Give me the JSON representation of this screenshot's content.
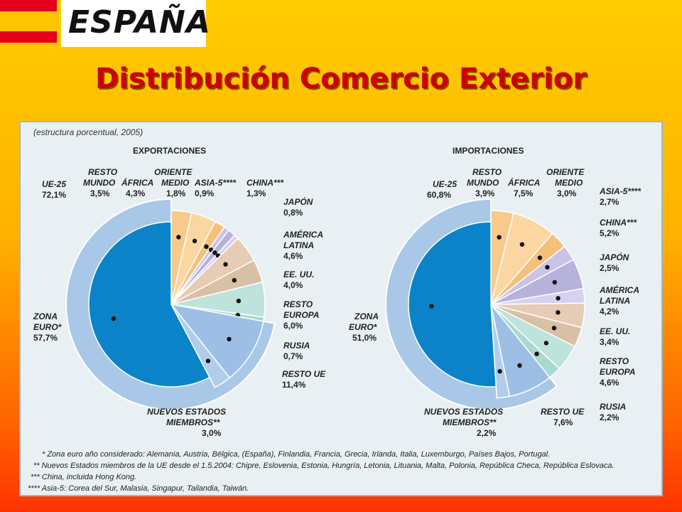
{
  "brand": {
    "logo_text": "ESPAÑA"
  },
  "title": "Distribución Comercio Exterior",
  "subtitle": "(estructura porcentual, 2005)",
  "chart_data": [
    {
      "type": "pie",
      "title": "EXPORTACIONES",
      "slices": [
        {
          "name": "RESTO MUNDO",
          "value": 3.5,
          "color": "#f7c98b"
        },
        {
          "name": "ÁFRICA",
          "value": 4.3,
          "color": "#fbd6a0"
        },
        {
          "name": "ORIENTE MEDIO",
          "value": 1.8,
          "color": "#f4c07a"
        },
        {
          "name": "ASIA-5****",
          "value": 0.9,
          "color": "#c9c3e6"
        },
        {
          "name": "CHINA***",
          "value": 1.3,
          "color": "#b7b2dc"
        },
        {
          "name": "JAPÓN",
          "value": 0.8,
          "color": "#d6d1ee"
        },
        {
          "name": "AMÉRICA LATINA",
          "value": 4.6,
          "color": "#e6ccb4"
        },
        {
          "name": "EE. UU.",
          "value": 4.0,
          "color": "#d8c0a6"
        },
        {
          "name": "RESTO EUROPA",
          "value": 6.0,
          "color": "#bde3dc"
        },
        {
          "name": "RUSIA",
          "value": 0.7,
          "color": "#a9d8cf"
        },
        {
          "name": "RESTO UE",
          "value": 11.4,
          "color": "#9dbfe6"
        },
        {
          "name": "NUEVOS ESTADOS MIEMBROS**",
          "value": 3.0,
          "color": "#b1cdeb"
        },
        {
          "name": "ZONA EURO*",
          "value": 57.7,
          "color": "#0b83c9"
        }
      ],
      "labels": {
        "ue25": {
          "name": "UE-25",
          "value": "72,1%"
        },
        "resto_mundo": {
          "name1": "RESTO",
          "name2": "MUNDO",
          "value": "3,5%"
        },
        "africa": {
          "name": "ÁFRICA",
          "value": "4,3%"
        },
        "oriente": {
          "name1": "ORIENTE",
          "name2": "MEDIO",
          "value": "1,8%"
        },
        "asia5": {
          "name": "ASIA-5****",
          "value": "0,9%"
        },
        "china": {
          "name": "CHINA***",
          "value": "1,3%"
        },
        "japon": {
          "name": "JAPÓN",
          "value": "0,8%"
        },
        "america": {
          "name1": "AMÉRICA",
          "name2": "LATINA",
          "value": "4,6%"
        },
        "eeuu": {
          "name": "EE. UU.",
          "value": "4,0%"
        },
        "resto_europa": {
          "name1": "RESTO",
          "name2": "EUROPA",
          "value": "6,0%"
        },
        "rusia": {
          "name": "RUSIA",
          "value": "0,7%"
        },
        "resto_ue": {
          "name": "RESTO UE",
          "value": "11,4%"
        },
        "nuevos": {
          "name1": "NUEVOS ESTADOS",
          "name2": "MIEMBROS**",
          "value": "3,0%"
        },
        "zona_euro": {
          "name1": "ZONA",
          "name2": "EURO*",
          "value": "57,7%"
        }
      }
    },
    {
      "type": "pie",
      "title": "IMPORTACIONES",
      "slices": [
        {
          "name": "RESTO MUNDO",
          "value": 3.9,
          "color": "#f7c98b"
        },
        {
          "name": "ÁFRICA",
          "value": 7.5,
          "color": "#fbd6a0"
        },
        {
          "name": "ORIENTE MEDIO",
          "value": 3.0,
          "color": "#f4c07a"
        },
        {
          "name": "ASIA-5****",
          "value": 2.7,
          "color": "#c9c3e6"
        },
        {
          "name": "CHINA***",
          "value": 5.2,
          "color": "#b7b2dc"
        },
        {
          "name": "JAPÓN",
          "value": 2.5,
          "color": "#d6d1ee"
        },
        {
          "name": "AMÉRICA LATINA",
          "value": 4.2,
          "color": "#e6ccb4"
        },
        {
          "name": "EE. UU.",
          "value": 3.4,
          "color": "#d8c0a6"
        },
        {
          "name": "RESTO EUROPA",
          "value": 4.6,
          "color": "#bde3dc"
        },
        {
          "name": "RUSIA",
          "value": 2.2,
          "color": "#a9d8cf"
        },
        {
          "name": "RESTO UE",
          "value": 7.6,
          "color": "#9dbfe6"
        },
        {
          "name": "NUEVOS ESTADOS MIEMBROS**",
          "value": 2.2,
          "color": "#b1cdeb"
        },
        {
          "name": "ZONA EURO*",
          "value": 51.0,
          "color": "#0b83c9"
        }
      ],
      "labels": {
        "ue25": {
          "name": "UE-25",
          "value": "60,8%"
        },
        "resto_mundo": {
          "name1": "RESTO",
          "name2": "MUNDO",
          "value": "3,9%"
        },
        "africa": {
          "name": "ÁFRICA",
          "value": "7,5%"
        },
        "oriente": {
          "name1": "ORIENTE",
          "name2": "MEDIO",
          "value": "3,0%"
        },
        "asia5": {
          "name": "ASIA-5****",
          "value": "2,7%"
        },
        "china": {
          "name": "CHINA***",
          "value": "5,2%"
        },
        "japon": {
          "name": "JAPÓN",
          "value": "2,5%"
        },
        "america": {
          "name1": "AMÉRICA",
          "name2": "LATINA",
          "value": "4,2%"
        },
        "eeuu": {
          "name": "EE. UU.",
          "value": "3,4%"
        },
        "resto_europa": {
          "name1": "RESTO",
          "name2": "EUROPA",
          "value": "4,6%"
        },
        "rusia": {
          "name": "RUSIA",
          "value": "2,2%"
        },
        "resto_ue": {
          "name": "RESTO UE",
          "value": "7,6%"
        },
        "nuevos": {
          "name1": "NUEVOS ESTADOS",
          "name2": "MIEMBROS**",
          "value": "2,2%"
        },
        "zona_euro": {
          "name1": "ZONA",
          "name2": "EURO*",
          "value": "51,0%"
        }
      }
    }
  ],
  "footnotes": [
    "*  Zona euro año considerado: Alemania, Austria, Bélgica, (España), Finlandia, Francia, Grecia, Irlanda, Italia, Luxemburgo, Países Bajos, Portugal.",
    "**  Nuevos Estados miembros de la UE desde el 1.5.2004: Chipre, Eslovenia, Estonia, Hungría, Letonia, Lituania, Malta, Polonia, República Checa, República Eslovaca.",
    "***  China, incluida Hong Kong.",
    "****  Asia-5: Corea del Sur, Malasia, Singapur, Tailandia, Taiwán."
  ]
}
